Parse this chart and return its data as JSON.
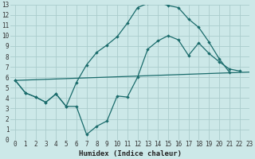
{
  "background_color": "#cce8e8",
  "grid_color": "#aacccc",
  "line_color": "#1a6b6b",
  "line1_x": [
    0,
    1,
    2,
    3,
    4,
    5,
    6,
    7,
    8,
    9,
    10,
    11,
    12,
    13,
    14,
    15,
    16,
    17,
    18,
    19,
    20,
    21,
    22
  ],
  "line1_y": [
    5.7,
    4.5,
    4.1,
    3.6,
    4.4,
    3.2,
    3.2,
    0.5,
    1.3,
    1.8,
    4.2,
    4.1,
    6.0,
    8.7,
    9.5,
    10.0,
    9.6,
    8.1,
    9.3,
    8.3,
    7.5,
    6.8,
    6.6
  ],
  "line2_x": [
    0,
    1,
    2,
    3,
    4,
    5,
    6,
    7,
    8,
    9,
    10,
    11,
    12,
    13,
    14,
    15,
    16,
    17,
    18,
    19,
    20,
    21,
    22,
    23
  ],
  "line2_y": [
    5.7,
    4.5,
    4.1,
    3.6,
    4.4,
    3.2,
    5.5,
    7.2,
    8.4,
    9.1,
    9.9,
    11.2,
    12.7,
    13.1,
    13.2,
    12.9,
    12.7,
    11.6,
    10.8,
    9.4,
    7.8,
    6.5,
    null,
    null
  ],
  "line3_x": [
    0,
    23
  ],
  "line3_y": [
    5.7,
    6.5
  ],
  "xlabel": "Humidex (Indice chaleur)",
  "xlim": [
    -0.5,
    23
  ],
  "ylim": [
    0,
    13
  ],
  "xticks": [
    0,
    1,
    2,
    3,
    4,
    5,
    6,
    7,
    8,
    9,
    10,
    11,
    12,
    13,
    14,
    15,
    16,
    17,
    18,
    19,
    20,
    21,
    22,
    23
  ],
  "yticks": [
    0,
    1,
    2,
    3,
    4,
    5,
    6,
    7,
    8,
    9,
    10,
    11,
    12,
    13
  ],
  "xlabel_fontsize": 6.5,
  "tick_fontsize": 5.5
}
